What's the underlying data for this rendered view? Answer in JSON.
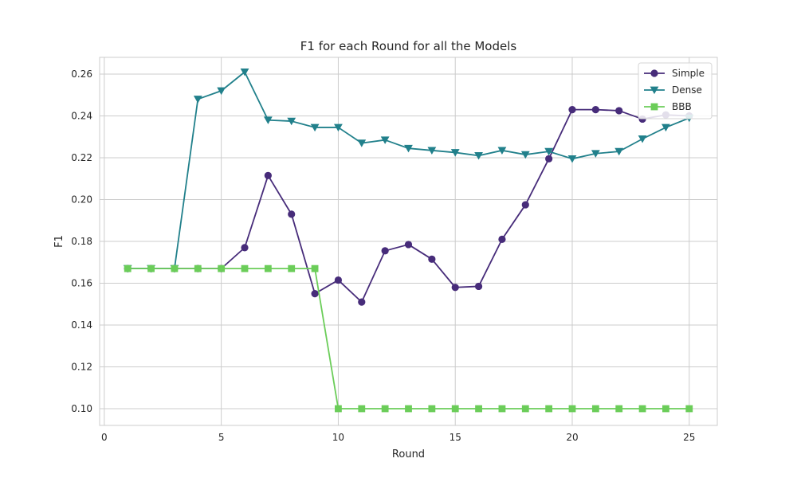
{
  "chart_data": {
    "type": "line",
    "title": "F1 for each Round for all the Models",
    "xlabel": "Round",
    "ylabel": "F1",
    "xlim": [
      -0.2,
      26.2
    ],
    "ylim": [
      0.092,
      0.268
    ],
    "xticks": [
      0,
      5,
      10,
      15,
      20,
      25
    ],
    "xtick_labels": [
      "0",
      "5",
      "10",
      "15",
      "20",
      "25"
    ],
    "yticks": [
      0.1,
      0.12,
      0.14,
      0.16,
      0.18,
      0.2,
      0.22,
      0.24,
      0.26
    ],
    "ytick_labels": [
      "0.10",
      "0.12",
      "0.14",
      "0.16",
      "0.18",
      "0.20",
      "0.22",
      "0.24",
      "0.26"
    ],
    "grid": true,
    "legend_position": "top-right",
    "x": [
      1,
      2,
      3,
      4,
      5,
      6,
      7,
      8,
      9,
      10,
      11,
      12,
      13,
      14,
      15,
      16,
      17,
      18,
      19,
      20,
      21,
      22,
      23,
      24,
      25
    ],
    "series": [
      {
        "name": "Simple",
        "color": "#472c7a",
        "marker": "circle",
        "values": [
          0.167,
          0.167,
          0.167,
          0.167,
          0.167,
          0.177,
          0.2115,
          0.193,
          0.155,
          0.1615,
          0.151,
          0.1755,
          0.1785,
          0.1715,
          0.158,
          0.1585,
          0.181,
          0.1975,
          0.2195,
          0.243,
          0.243,
          0.2425,
          0.2385,
          0.2405,
          0.24
        ]
      },
      {
        "name": "Dense",
        "color": "#21808b",
        "marker": "triangle-down",
        "values": [
          0.167,
          0.167,
          0.167,
          0.248,
          0.252,
          0.261,
          0.238,
          0.2375,
          0.2345,
          0.2345,
          0.227,
          0.2285,
          0.2245,
          0.2235,
          0.2225,
          0.221,
          0.2235,
          0.2215,
          0.223,
          0.2195,
          0.222,
          0.223,
          0.229,
          0.2345,
          0.239
        ]
      },
      {
        "name": "BBB",
        "color": "#6bcd59",
        "marker": "square",
        "values": [
          0.167,
          0.167,
          0.167,
          0.167,
          0.167,
          0.167,
          0.167,
          0.167,
          0.167,
          0.1,
          0.1,
          0.1,
          0.1,
          0.1,
          0.1,
          0.1,
          0.1,
          0.1,
          0.1,
          0.1,
          0.1,
          0.1,
          0.1,
          0.1,
          0.1
        ]
      }
    ]
  }
}
